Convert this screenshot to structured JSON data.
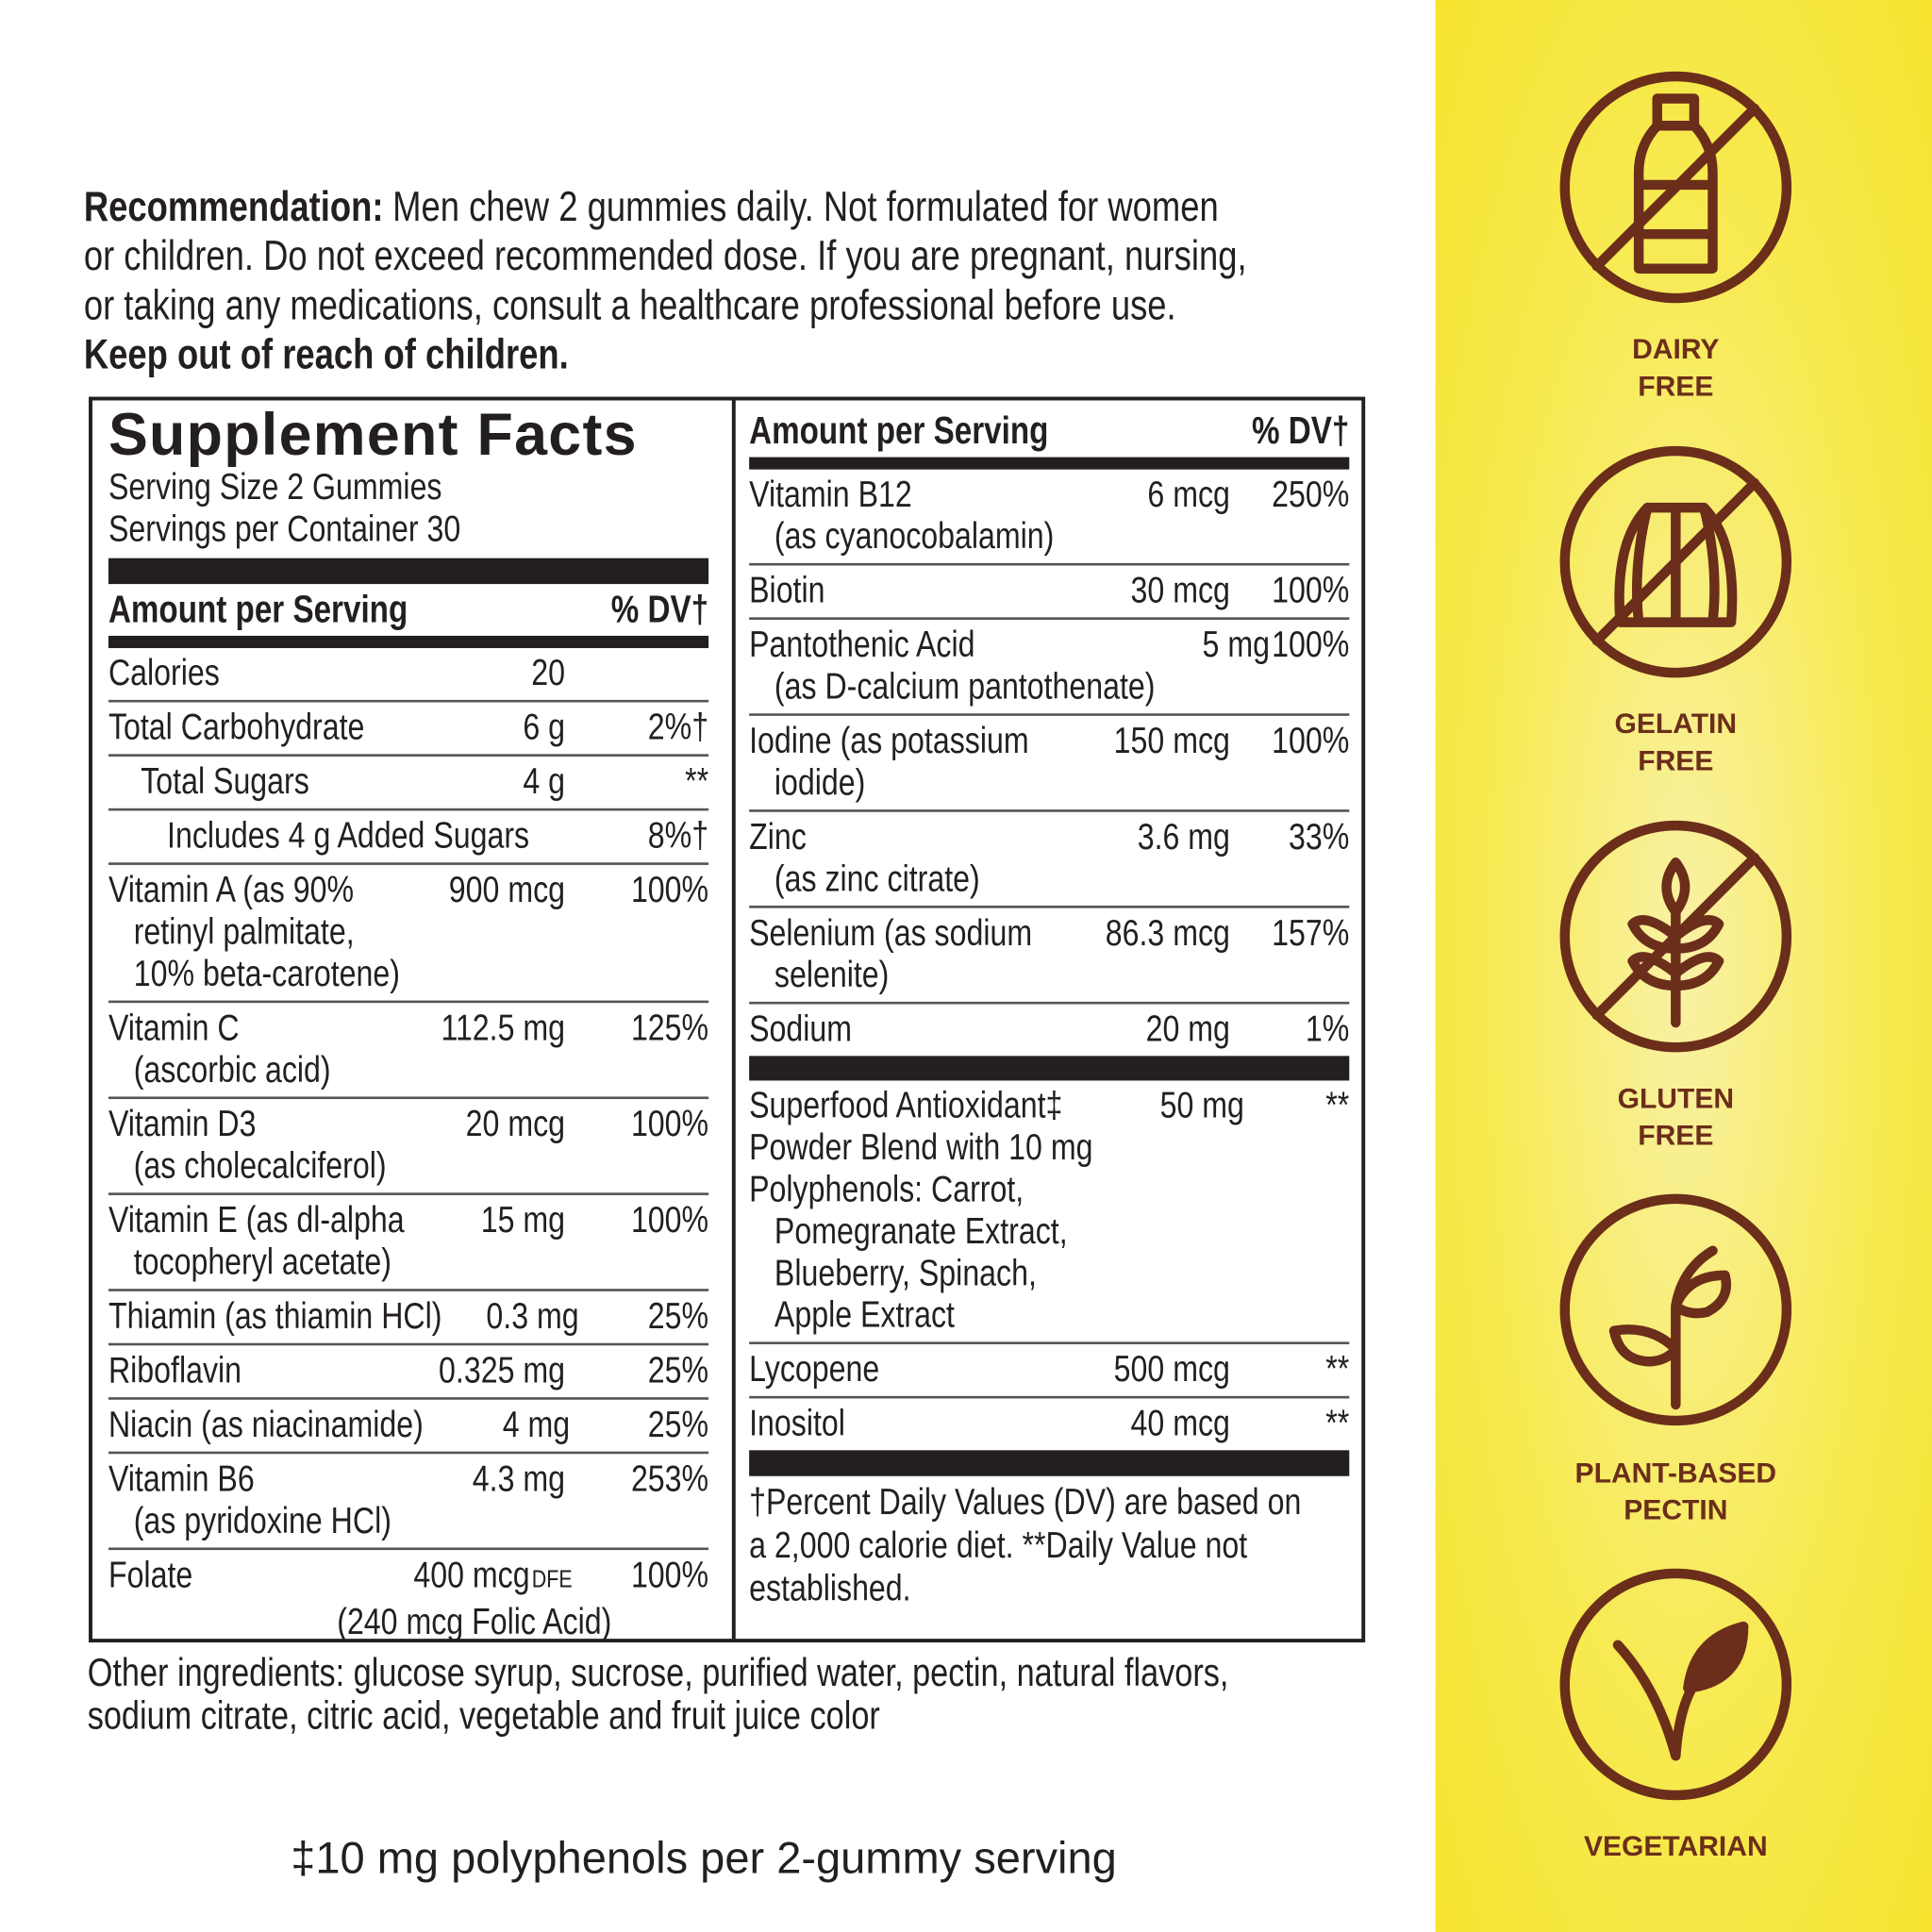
{
  "recommendation": {
    "label": "Recommendation:",
    "lines": [
      "Men chew 2 gummies daily. Not formulated for women",
      "or children. Do not exceed recommended dose. If you are pregnant, nursing,",
      "or taking any medications, consult a healthcare professional before use."
    ],
    "warning": "Keep out of reach of children."
  },
  "facts": {
    "title": "Supplement Facts",
    "serving_size": "Serving Size 2 Gummies",
    "servings_per_container": "Servings per Container 30",
    "left": {
      "header_amount": "Amount per Serving",
      "header_dv": "% DV†",
      "rows": [
        {
          "name": [
            "Calories"
          ],
          "amount": "20"
        },
        {
          "name": [
            "Total Carbohydrate"
          ],
          "amount": "6 g",
          "dv": "2%†"
        },
        {
          "name": [
            "Total Sugars"
          ],
          "amount": "4 g",
          "dv": "**"
        },
        {
          "name": [
            "Includes 4 g Added Sugars"
          ],
          "dv": "8%†"
        },
        {
          "name": [
            "Vitamin A (as 90%",
            "retinyl palmitate,",
            "10% beta-carotene)"
          ],
          "amount": "900 mcg",
          "dv": "100%"
        },
        {
          "name": [
            "Vitamin C",
            "(ascorbic acid)"
          ],
          "amount": "112.5 mg",
          "dv": "125%"
        },
        {
          "name": [
            "Vitamin D3",
            "(as cholecalciferol)"
          ],
          "amount": "20 mcg",
          "dv": "100%"
        },
        {
          "name": [
            "Vitamin E (as dl-alpha",
            "tocopheryl acetate)"
          ],
          "amount": "15 mg",
          "dv": "100%"
        },
        {
          "name": [
            "Thiamin (as thiamin HCl)"
          ],
          "amount": "0.3 mg",
          "dv": "25%"
        },
        {
          "name": [
            "Riboflavin"
          ],
          "amount": "0.325 mg",
          "dv": "25%"
        },
        {
          "name": [
            "Niacin (as niacinamide)"
          ],
          "amount": "4 mg",
          "dv": "25%"
        },
        {
          "name": [
            "Vitamin B6",
            "(as pyridoxine HCl)"
          ],
          "amount": "4.3 mg",
          "dv": "253%"
        },
        {
          "name": [
            "Folate"
          ],
          "amount": "400 mcg",
          "amount_unit": "DFE",
          "note": "(240 mcg Folic Acid)",
          "dv": "100%"
        }
      ]
    },
    "right": {
      "header_amount": "Amount per Serving",
      "header_dv": "% DV†",
      "rows": [
        {
          "name": [
            "Vitamin B12",
            "(as cyanocobalamin)"
          ],
          "amount": "6 mcg",
          "dv": "250%"
        },
        {
          "name": [
            "Biotin"
          ],
          "amount": "30 mcg",
          "dv": "100%"
        },
        {
          "name": [
            "Pantothenic Acid",
            "(as D-calcium pantothenate)"
          ],
          "amount": "5 mg",
          "dv": "100%"
        },
        {
          "name": [
            "Iodine (as potassium",
            "iodide)"
          ],
          "amount": "150 mcg",
          "dv": "100%"
        },
        {
          "name": [
            "Zinc",
            "(as zinc citrate)"
          ],
          "amount": "3.6 mg",
          "dv": "33%"
        },
        {
          "name": [
            "Selenium (as sodium",
            "selenite)"
          ],
          "amount": "86.3 mcg",
          "dv": "157%"
        },
        {
          "name": [
            "Sodium"
          ],
          "amount": "20 mg",
          "dv": "1%"
        },
        {
          "name": [
            "Superfood Antioxidant‡",
            "Powder Blend with 10 mg",
            "Polyphenols: Carrot,",
            "Pomegranate Extract,",
            "Blueberry, Spinach,",
            "Apple Extract"
          ],
          "amount": "50 mg",
          "dv": "**"
        },
        {
          "name": [
            "Lycopene"
          ],
          "amount": "500 mcg",
          "dv": "**"
        },
        {
          "name": [
            "Inositol"
          ],
          "amount": "40 mcg",
          "dv": "**"
        }
      ],
      "footnote": [
        "†Percent Daily Values (DV) are based on",
        "a 2,000 calorie diet. **Daily Value not",
        "established."
      ]
    }
  },
  "other_ingredients": [
    "Other ingredients: glucose syrup, sucrose, purified water, pectin, natural flavors,",
    "sodium citrate, citric acid, vegetable and fruit juice color"
  ],
  "polyphenol_note": "‡10 mg polyphenols per 2-gummy serving",
  "badges": [
    {
      "label": [
        "DAIRY",
        "FREE"
      ]
    },
    {
      "label": [
        "GELATIN",
        "FREE"
      ]
    },
    {
      "label": [
        "GLUTEN",
        "FREE"
      ]
    },
    {
      "label": [
        "PLANT-BASED",
        "PECTIN"
      ]
    },
    {
      "label": [
        "VEGETARIAN"
      ]
    }
  ]
}
